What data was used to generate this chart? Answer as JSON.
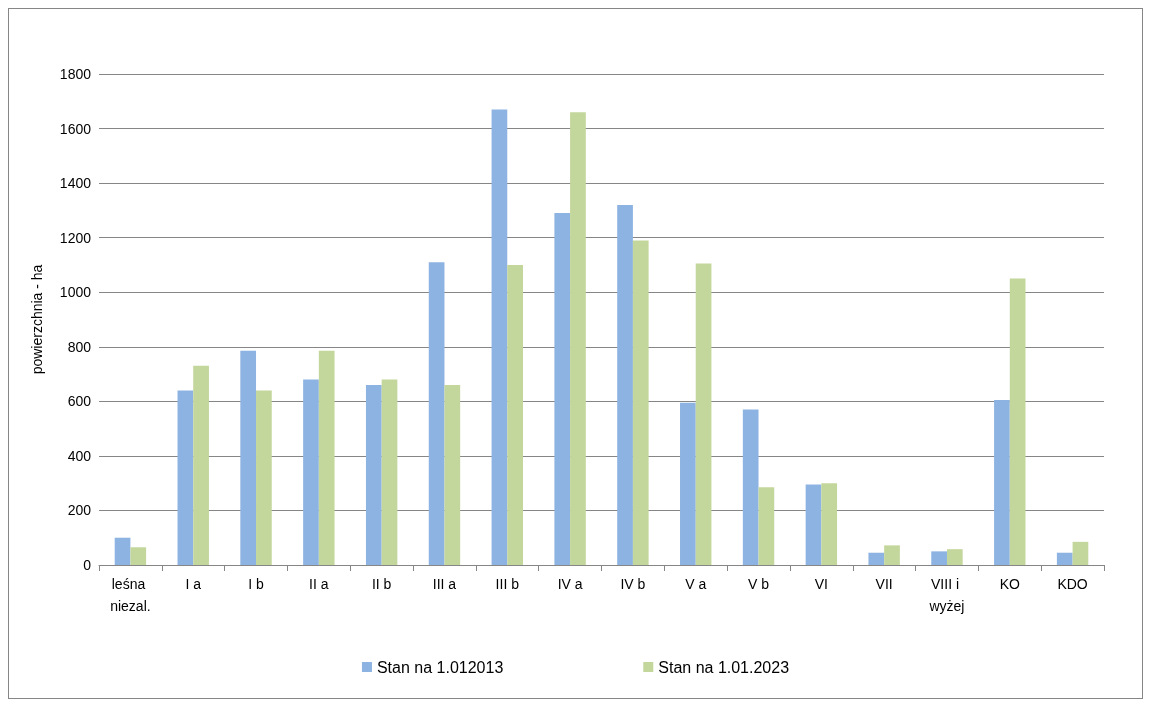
{
  "chart_data": {
    "type": "bar",
    "ylabel": "powierzchnia - ha",
    "categories": [
      "leśna niezal.",
      "I a",
      "I b",
      "II a",
      "II b",
      "III a",
      "III b",
      "IV a",
      "IV b",
      "V a",
      "V b",
      "VI",
      "VII",
      "VIII i wyżej",
      "KO",
      "KDO"
    ],
    "series": [
      {
        "name": "Stan na 1.012013",
        "color": "#8db3e2",
        "values": [
          100,
          640,
          785,
          680,
          660,
          1110,
          1670,
          1290,
          1320,
          595,
          570,
          295,
          45,
          50,
          605,
          45
        ]
      },
      {
        "name": "Stan na 1.01.2023",
        "color": "#c3d69b",
        "values": [
          65,
          730,
          640,
          785,
          680,
          660,
          1100,
          1660,
          1190,
          1105,
          285,
          300,
          72,
          58,
          1050,
          85
        ]
      }
    ],
    "ylim": [
      0,
      1800
    ],
    "yticks": [
      0,
      200,
      400,
      600,
      800,
      1000,
      1200,
      1400,
      1600,
      1800
    ],
    "grid": "y",
    "legend": "bottom"
  }
}
